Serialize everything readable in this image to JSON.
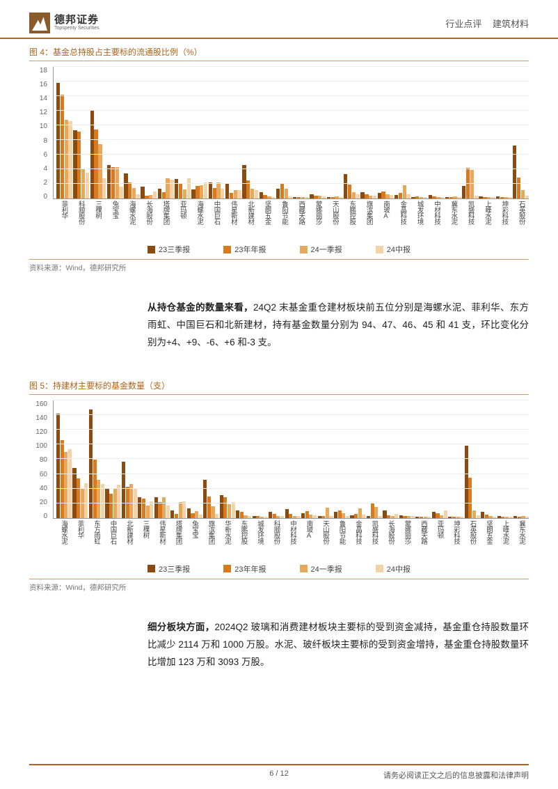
{
  "header": {
    "logo_cn": "德邦证券",
    "logo_en": "Topsperity Securities",
    "category": "行业点评",
    "sector": "建筑材料"
  },
  "colors": {
    "series": [
      "#8b4a0f",
      "#d97a1f",
      "#e8a85c",
      "#f3d2a8"
    ],
    "accent": "#b0651a",
    "grid": "#eeeeee",
    "axis": "#999999",
    "text": "#333333"
  },
  "legend_labels": [
    "23三季报",
    "23年年报",
    "24一季报",
    "24中报"
  ],
  "chart4": {
    "title": "图 4：基金总持股占主要标的流通股比例（%）",
    "source": "资料来源：Wind，德邦研究所",
    "ymax": 18,
    "yticks": [
      0,
      2,
      4,
      6,
      8,
      10,
      12,
      14,
      16,
      18
    ],
    "categories": [
      "菲利华",
      "科顺股份",
      "三棵树",
      "兔宝宝",
      "海螺水泥",
      "长海股份",
      "塔牌集团",
      "亚玛顿",
      "海螺水泥",
      "中国巨石",
      "伟星新材",
      "北新建材",
      "坚朗五金",
      "鲁阳节能",
      "西藏天路",
      "蒙娜丽莎",
      "天山股份",
      "东鹏控股",
      "旗滨集团",
      "南玻A",
      "金晶科技",
      "城发环境",
      "中材科技",
      "冀东水泥",
      "凯盛科技",
      "上峰水泥",
      "坤彩科技",
      "石英股份"
    ],
    "series": [
      [
        15.8,
        14.2,
        10.8,
        10.6
      ],
      [
        9.3,
        9.1,
        4.0,
        3.5
      ],
      [
        12.1,
        9.4,
        7.4,
        2.8
      ],
      [
        4.6,
        4.3,
        4.3,
        1.6
      ],
      [
        3.4,
        2.2,
        1.4,
        0.6
      ],
      [
        1.6,
        0.4,
        0.5,
        1.0
      ],
      [
        1.3,
        0.9,
        2.8,
        2.6
      ],
      [
        2.7,
        2.0,
        1.2,
        2.8
      ],
      [
        1.2,
        1.7,
        1.8,
        2.2
      ],
      [
        2.2,
        1.4,
        2.2,
        1.3
      ],
      [
        2.1,
        0.8,
        1.1,
        1.1
      ],
      [
        4.6,
        2.5,
        1.3,
        1.1
      ],
      [
        0.9,
        0.5,
        0.3,
        0.2
      ],
      [
        1.3,
        2.0,
        1.3,
        0.3
      ],
      [
        0.2,
        0.2,
        0.2,
        0.2
      ],
      [
        0.6,
        0.4,
        0.4,
        0.3
      ],
      [
        0.2,
        0.2,
        0.3,
        0.2
      ],
      [
        3.3,
        1.9,
        0.9,
        0.6
      ],
      [
        0.9,
        0.6,
        0.4,
        0.4
      ],
      [
        0.8,
        1.0,
        0.6,
        0.5
      ],
      [
        0.5,
        0.8,
        1.8,
        0.6
      ],
      [
        0.2,
        0.3,
        0.2,
        0.2
      ],
      [
        0.5,
        0.3,
        0.2,
        0.2
      ],
      [
        0.2,
        0.2,
        0.3,
        0.2
      ],
      [
        1.7,
        4.2,
        3.9,
        0.4
      ],
      [
        0.3,
        0.2,
        0.2,
        0.2
      ],
      [
        0.3,
        0.2,
        0.2,
        0.2
      ],
      [
        7.2,
        2.9,
        1.1,
        0.4
      ]
    ]
  },
  "para1": {
    "lead": "从持仓基金的数量来看，",
    "rest": "24Q2 末基金重仓建材板块前五位分别是海螺水泥、菲利华、东方雨虹、中国巨石和北新建材，持有基金数量分别为 94、47、46、45 和 41 支，环比变化分别为+4、+9、-6、+6 和-3 支。"
  },
  "chart5": {
    "title": "图 5：持建材主要标的基金数量（支）",
    "source": "资料来源：Wind，德邦研究所",
    "ymax": 160,
    "yticks": [
      0,
      20,
      40,
      60,
      80,
      100,
      120,
      140,
      160
    ],
    "categories": [
      "海螺水泥",
      "菲利华",
      "东方雨虹",
      "中国巨石",
      "北新建材",
      "三棵树",
      "伟星新材",
      "塔牌集团",
      "兔宝宝",
      "旗滨集团",
      "华新水泥",
      "东鹏控股",
      "城发环境",
      "科顺股份",
      "中材科技",
      "南玻A",
      "天山股份",
      "鲁阳节能",
      "金晶科技",
      "凯盛科技",
      "长海股份",
      "蒙娜丽莎",
      "西藏天路",
      "亚玛顿",
      "坤彩科技",
      "石英股份",
      "坚朗五金",
      "上峰水泥",
      "冀东水泥"
    ],
    "series": [
      [
        142,
        106,
        90,
        94
      ],
      [
        68,
        54,
        40,
        47
      ],
      [
        148,
        79,
        52,
        46
      ],
      [
        40,
        33,
        40,
        45
      ],
      [
        77,
        43,
        46,
        41
      ],
      [
        28,
        26,
        17,
        23
      ],
      [
        28,
        22,
        28,
        17
      ],
      [
        10,
        6,
        22,
        23
      ],
      [
        13,
        7,
        9,
        5
      ],
      [
        52,
        29,
        16,
        6
      ],
      [
        31,
        28,
        19,
        22
      ],
      [
        10,
        8,
        4,
        3
      ],
      [
        3,
        3,
        2,
        2
      ],
      [
        8,
        6,
        3,
        3
      ],
      [
        12,
        6,
        3,
        3
      ],
      [
        7,
        9,
        5,
        4
      ],
      [
        3,
        3,
        14,
        3
      ],
      [
        8,
        10,
        7,
        3
      ],
      [
        4,
        6,
        13,
        5
      ],
      [
        3,
        20,
        15,
        3
      ],
      [
        10,
        4,
        3,
        6
      ],
      [
        4,
        3,
        3,
        3
      ],
      [
        2,
        2,
        2,
        2
      ],
      [
        8,
        7,
        4,
        10
      ],
      [
        2,
        2,
        2,
        2
      ],
      [
        98,
        55,
        10,
        4
      ],
      [
        8,
        5,
        3,
        2
      ],
      [
        3,
        2,
        2,
        2
      ],
      [
        3,
        2,
        3,
        2
      ]
    ]
  },
  "para2": {
    "lead": "细分板块方面，",
    "rest": "2024Q2 玻璃和消费建材板块主要标的受到资金减持，基金重仓持股数量环比减少 2114 万和 1000 万股。水泥、玻纤板块主要标的受到资金增持，基金重仓持股数量环比增加 123 万和 3093 万股。"
  },
  "footer": {
    "page": "6 / 12",
    "disclaimer": "请务必阅读正文之后的信息披露和法律声明"
  }
}
